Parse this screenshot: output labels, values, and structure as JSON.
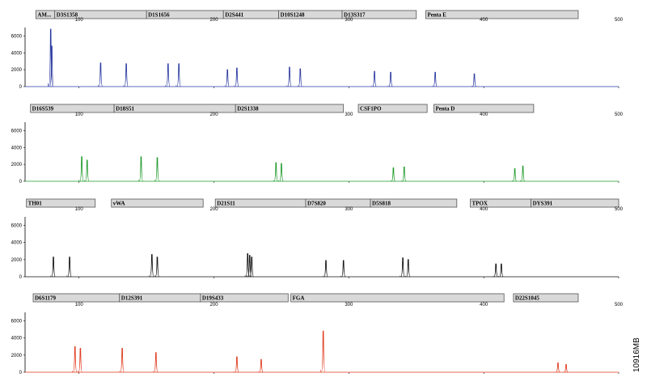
{
  "figure_id": "10916MB",
  "chart_data": [
    {
      "type": "line",
      "dye": "blue",
      "color": "#2b3aa0",
      "x_range": [
        60,
        500
      ],
      "y_range": [
        0,
        7000
      ],
      "x_ticks": [
        100,
        200,
        300,
        400,
        500
      ],
      "y_ticks": [
        0,
        2000,
        4000,
        6000
      ],
      "loci": [
        {
          "name": "AM...",
          "start": 68,
          "end": 82
        },
        {
          "name": "D3S1358",
          "start": 82,
          "end": 150
        },
        {
          "name": "D1S1656",
          "start": 150,
          "end": 207
        },
        {
          "name": "D2S441",
          "start": 207,
          "end": 248
        },
        {
          "name": "D10S1248",
          "start": 248,
          "end": 295
        },
        {
          "name": "D13S317",
          "start": 295,
          "end": 350
        },
        {
          "name": "Penta E",
          "start": 357,
          "end": 470
        }
      ],
      "peaks": [
        {
          "x": 79,
          "y": 6800
        },
        {
          "x": 79.8,
          "y": 4800
        },
        {
          "x": 116,
          "y": 2800
        },
        {
          "x": 135,
          "y": 2700
        },
        {
          "x": 166,
          "y": 2700
        },
        {
          "x": 174,
          "y": 2700
        },
        {
          "x": 210,
          "y": 2000
        },
        {
          "x": 217,
          "y": 2200
        },
        {
          "x": 256,
          "y": 2300
        },
        {
          "x": 264,
          "y": 2100
        },
        {
          "x": 319,
          "y": 1800
        },
        {
          "x": 331,
          "y": 1700
        },
        {
          "x": 364,
          "y": 1700
        },
        {
          "x": 393,
          "y": 1500
        }
      ]
    },
    {
      "type": "line",
      "dye": "green",
      "color": "#1e9a2a",
      "x_range": [
        60,
        500
      ],
      "y_range": [
        0,
        7000
      ],
      "x_ticks": [
        100,
        200,
        300,
        400,
        500
      ],
      "y_ticks": [
        0,
        2000,
        4000,
        6000
      ],
      "loci": [
        {
          "name": "D16S539",
          "start": 64,
          "end": 126
        },
        {
          "name": "D18S51",
          "start": 126,
          "end": 216
        },
        {
          "name": "D2S1338",
          "start": 216,
          "end": 296
        },
        {
          "name": "CSF1PO",
          "start": 307,
          "end": 358
        },
        {
          "name": "Penta D",
          "start": 363,
          "end": 437
        }
      ],
      "peaks": [
        {
          "x": 102,
          "y": 2900
        },
        {
          "x": 106,
          "y": 2500
        },
        {
          "x": 146,
          "y": 2900
        },
        {
          "x": 158,
          "y": 2800
        },
        {
          "x": 246,
          "y": 2200
        },
        {
          "x": 250,
          "y": 2100
        },
        {
          "x": 333,
          "y": 1600
        },
        {
          "x": 341,
          "y": 1700
        },
        {
          "x": 423,
          "y": 1500
        },
        {
          "x": 429,
          "y": 1800
        }
      ]
    },
    {
      "type": "line",
      "dye": "black",
      "color": "#111111",
      "x_range": [
        60,
        500
      ],
      "y_range": [
        0,
        7000
      ],
      "x_ticks": [
        100,
        200,
        300,
        400,
        500
      ],
      "y_ticks": [
        0,
        2000,
        4000,
        6000
      ],
      "loci": [
        {
          "name": "TH01",
          "start": 61,
          "end": 112
        },
        {
          "name": "vWA",
          "start": 124,
          "end": 192
        },
        {
          "name": "D21S11",
          "start": 201,
          "end": 268
        },
        {
          "name": "D7S820",
          "start": 268,
          "end": 316
        },
        {
          "name": "D5S818",
          "start": 316,
          "end": 380
        },
        {
          "name": "TPOX",
          "start": 390,
          "end": 435
        },
        {
          "name": "DYS391",
          "start": 435,
          "end": 500
        }
      ],
      "peaks": [
        {
          "x": 81,
          "y": 2300
        },
        {
          "x": 93,
          "y": 2300
        },
        {
          "x": 154,
          "y": 2600
        },
        {
          "x": 158,
          "y": 2300
        },
        {
          "x": 225,
          "y": 2700
        },
        {
          "x": 226.5,
          "y": 2500
        },
        {
          "x": 228,
          "y": 2300
        },
        {
          "x": 283,
          "y": 1900
        },
        {
          "x": 296,
          "y": 1900
        },
        {
          "x": 340,
          "y": 2200
        },
        {
          "x": 344,
          "y": 2000
        },
        {
          "x": 409,
          "y": 1500
        },
        {
          "x": 413,
          "y": 1500
        }
      ]
    },
    {
      "type": "line",
      "dye": "red",
      "color": "#e03a1e",
      "x_range": [
        60,
        500
      ],
      "y_range": [
        0,
        7000
      ],
      "x_ticks": [
        100,
        200,
        300,
        400,
        500
      ],
      "y_ticks": [
        0,
        2000,
        4000,
        6000
      ],
      "loci": [
        {
          "name": "D6S1179",
          "start": 66,
          "end": 130
        },
        {
          "name": "D12S391",
          "start": 130,
          "end": 190
        },
        {
          "name": "D19S433",
          "start": 190,
          "end": 255
        },
        {
          "name": "FGA",
          "start": 257,
          "end": 415
        },
        {
          "name": "D22S1045",
          "start": 422,
          "end": 470
        }
      ],
      "peaks": [
        {
          "x": 97,
          "y": 3000
        },
        {
          "x": 101,
          "y": 2800
        },
        {
          "x": 132,
          "y": 2800
        },
        {
          "x": 157,
          "y": 2300
        },
        {
          "x": 217,
          "y": 1800
        },
        {
          "x": 235,
          "y": 1500
        },
        {
          "x": 281,
          "y": 4800
        },
        {
          "x": 455,
          "y": 1100
        },
        {
          "x": 461,
          "y": 900
        }
      ]
    }
  ]
}
